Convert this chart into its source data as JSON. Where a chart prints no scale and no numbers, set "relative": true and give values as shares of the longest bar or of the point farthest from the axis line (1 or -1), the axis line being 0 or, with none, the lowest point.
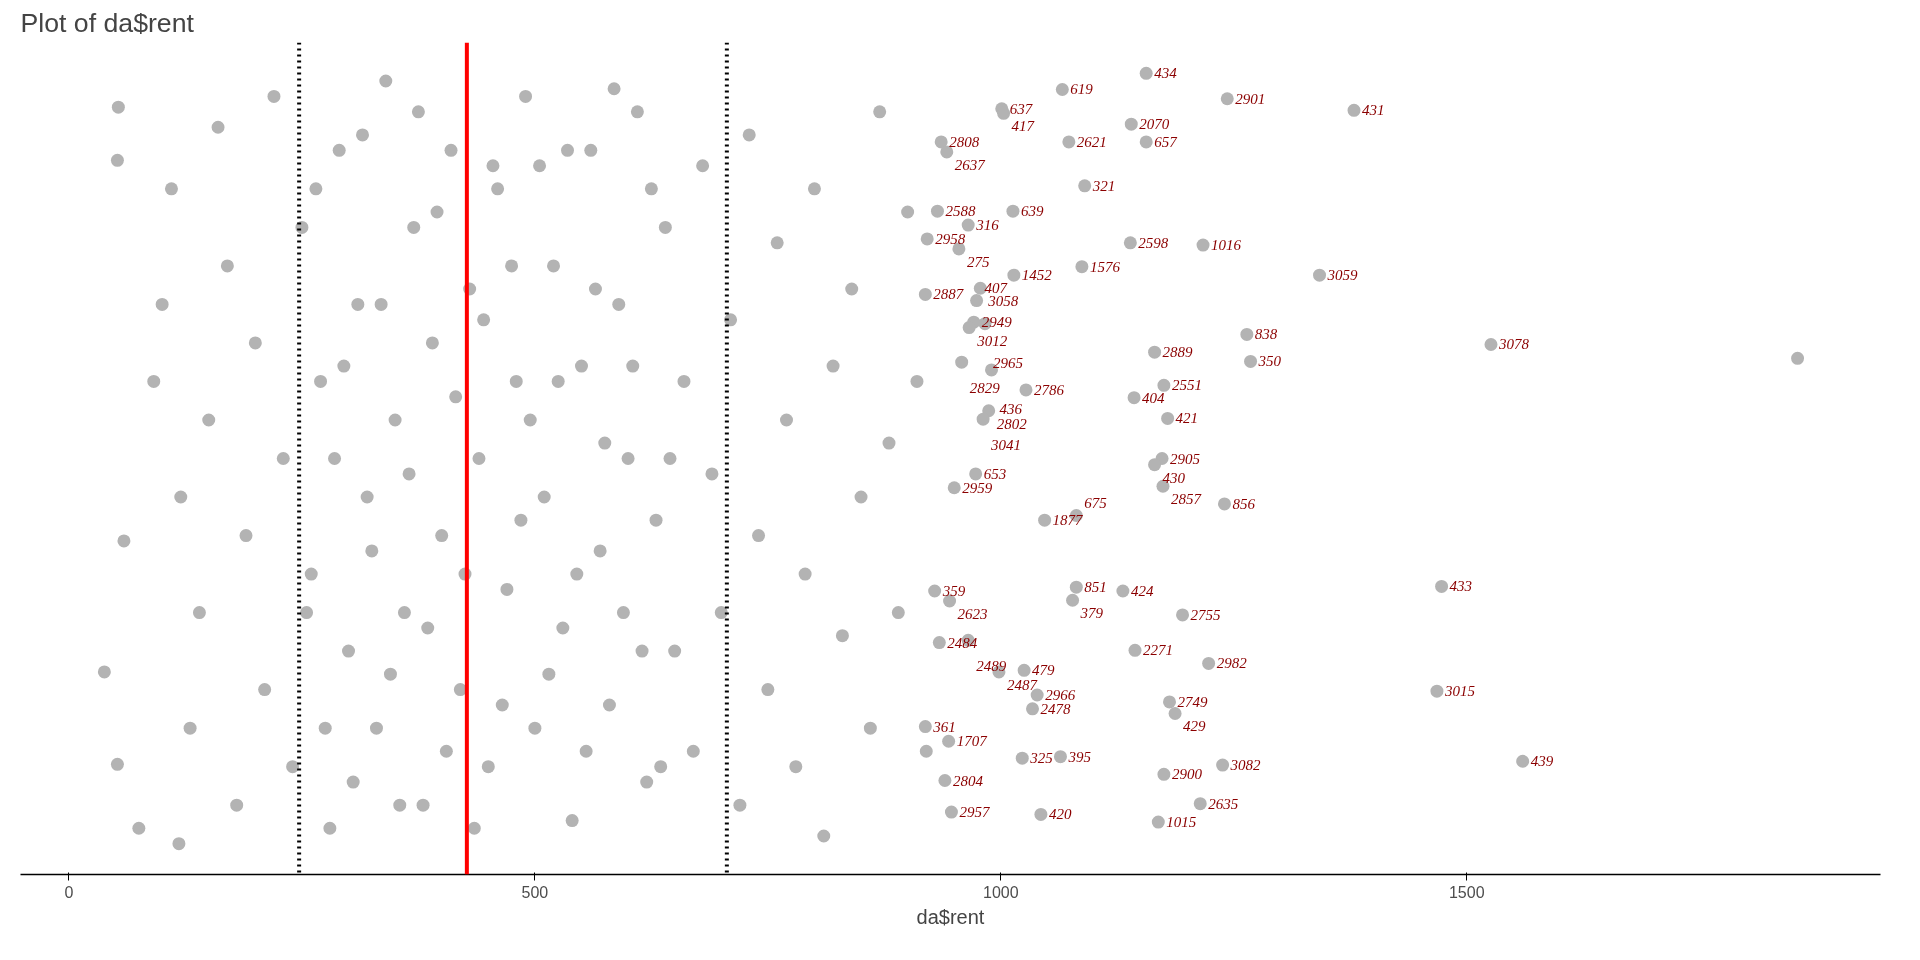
{
  "chart_data": {
    "type": "scatter",
    "title": "Plot of da$rent",
    "xlabel": "da$rent",
    "relative": true,
    "tick_labels": "x",
    "grid": false,
    "marker": "circle",
    "xlim": [
      -52,
      1944
    ],
    "xticks": [
      0,
      500,
      1000,
      1500
    ],
    "series": [
      {
        "color": "#b3b3b3",
        "x": [
          53,
          52,
          38,
          52,
          59,
          118,
          75,
          91,
          100,
          120,
          130,
          110,
          140,
          150,
          160,
          170,
          180,
          190,
          200,
          210,
          220,
          230,
          240,
          250,
          260,
          270,
          280,
          290,
          300,
          310,
          320,
          330,
          340,
          350,
          360,
          370,
          380,
          390,
          400,
          410,
          420,
          430,
          440,
          450,
          460,
          470,
          480,
          490,
          500,
          510,
          520,
          530,
          540,
          550,
          560,
          570,
          580,
          590,
          600,
          610,
          620,
          630,
          640,
          650,
          660,
          670,
          680,
          690,
          700,
          710,
          720,
          730,
          740,
          750,
          760,
          770,
          780,
          790,
          800,
          810,
          820,
          830,
          840,
          850,
          860,
          870,
          880,
          890,
          900,
          910,
          920,
          255,
          265,
          275,
          285,
          295,
          305,
          315,
          325,
          335,
          345,
          355,
          365,
          375,
          385,
          395,
          405,
          415,
          425,
          435,
          445,
          455,
          465,
          475,
          485,
          495,
          505,
          515,
          525,
          535,
          545,
          555,
          565,
          575,
          585,
          595,
          605,
          615,
          625,
          635,
          645,
          1156,
          1066,
          1243,
          1379,
          1001,
          1003,
          1140,
          1073,
          1156,
          936,
          942,
          1090,
          932,
          1013,
          965,
          921,
          955,
          1139,
          1217,
          1087,
          1014,
          1342,
          919,
          978,
          974,
          971,
          966,
          983,
          1264,
          1526,
          1855,
          1165,
          1268,
          958,
          990,
          1027,
          1175,
          1143,
          1179,
          987,
          981,
          1173,
          1165,
          973,
          950,
          1174,
          1240,
          1047,
          1081,
          929,
          945,
          1081,
          1077,
          1131,
          1473,
          1195,
          934,
          965,
          1144,
          1223,
          998,
          1025,
          1468,
          1039,
          1034,
          1181,
          1187,
          919,
          944,
          1023,
          1064,
          1560,
          1238,
          1175,
          940,
          1214,
          947,
          1043,
          1169
        ],
        "values": [
          0.956,
          0.887,
          0.223,
          0.103,
          0.393,
          0.0,
          0.02,
          0.6,
          0.7,
          0.45,
          0.15,
          0.85,
          0.3,
          0.55,
          0.93,
          0.75,
          0.05,
          0.4,
          0.65,
          0.2,
          0.97,
          0.5,
          0.1,
          0.8,
          0.35,
          0.6,
          0.02,
          0.9,
          0.25,
          0.7,
          0.45,
          0.15,
          0.99,
          0.55,
          0.3,
          0.8,
          0.05,
          0.65,
          0.4,
          0.9,
          0.2,
          0.72,
          0.5,
          0.1,
          0.85,
          0.33,
          0.6,
          0.97,
          0.15,
          0.45,
          0.75,
          0.28,
          0.03,
          0.62,
          0.9,
          0.38,
          0.18,
          0.7,
          0.5,
          0.95,
          0.08,
          0.42,
          0.8,
          0.25,
          0.6,
          0.12,
          0.88,
          0.48,
          0.3,
          0.68,
          0.05,
          0.92,
          0.4,
          0.2,
          0.78,
          0.55,
          0.1,
          0.35,
          0.85,
          0.01,
          0.62,
          0.27,
          0.72,
          0.45,
          0.15,
          0.95,
          0.52,
          0.3,
          0.82,
          0.6,
          0.12,
          0.3,
          0.85,
          0.15,
          0.5,
          0.62,
          0.08,
          0.92,
          0.38,
          0.7,
          0.22,
          0.05,
          0.48,
          0.95,
          0.28,
          0.82,
          0.12,
          0.58,
          0.35,
          0.02,
          0.68,
          0.88,
          0.18,
          0.75,
          0.42,
          0.55,
          0.88,
          0.22,
          0.6,
          0.9,
          0.35,
          0.12,
          0.72,
          0.52,
          0.98,
          0.3,
          0.62,
          0.25,
          0.85,
          0.1,
          0.5,
          1.0,
          0.979,
          0.967,
          0.952,
          0.954,
          0.948,
          0.934,
          0.911,
          0.911,
          0.911,
          0.898,
          0.854,
          0.821,
          0.821,
          0.803,
          0.785,
          0.772,
          0.78,
          0.777,
          0.749,
          0.738,
          0.738,
          0.713,
          0.721,
          0.705,
          0.677,
          0.67,
          0.675,
          0.661,
          0.648,
          0.63,
          0.638,
          0.626,
          0.625,
          0.615,
          0.589,
          0.595,
          0.579,
          0.552,
          0.562,
          0.551,
          0.5,
          0.492,
          0.48,
          0.462,
          0.464,
          0.441,
          0.42,
          0.426,
          0.328,
          0.315,
          0.333,
          0.316,
          0.328,
          0.334,
          0.297,
          0.261,
          0.264,
          0.251,
          0.234,
          0.223,
          0.225,
          0.198,
          0.193,
          0.175,
          0.184,
          0.169,
          0.152,
          0.133,
          0.111,
          0.113,
          0.107,
          0.102,
          0.09,
          0.082,
          0.052,
          0.041,
          0.038,
          0.028
        ]
      }
    ],
    "ref_lines": [
      {
        "axis": "x",
        "value": 247,
        "color": "#000000",
        "line_style": "dotted"
      },
      {
        "axis": "x",
        "value": 427,
        "color": "#ff0000",
        "line_style": "solid"
      },
      {
        "axis": "x",
        "value": 706,
        "color": "#000000",
        "line_style": "dotted"
      }
    ],
    "annotations": [
      {
        "text": "434",
        "x": 1156,
        "y": 1.0
      },
      {
        "text": "619",
        "x": 1066,
        "y": 0.979
      },
      {
        "text": "2901",
        "x": 1243,
        "y": 0.967
      },
      {
        "text": "431",
        "x": 1379,
        "y": 0.952
      },
      {
        "text": "637",
        "x": 1001,
        "y": 0.954
      },
      {
        "text": "417",
        "x": 1003,
        "y": 0.948
      },
      {
        "text": "2070",
        "x": 1140,
        "y": 0.934
      },
      {
        "text": "2621",
        "x": 1073,
        "y": 0.911
      },
      {
        "text": "657",
        "x": 1156,
        "y": 0.911
      },
      {
        "text": "2808",
        "x": 936,
        "y": 0.911
      },
      {
        "text": "2637",
        "x": 942,
        "y": 0.898
      },
      {
        "text": "321",
        "x": 1090,
        "y": 0.854
      },
      {
        "text": "2588",
        "x": 932,
        "y": 0.821
      },
      {
        "text": "639",
        "x": 1013,
        "y": 0.821
      },
      {
        "text": "316",
        "x": 965,
        "y": 0.803
      },
      {
        "text": "2958",
        "x": 921,
        "y": 0.785
      },
      {
        "text": "275",
        "x": 955,
        "y": 0.772
      },
      {
        "text": "2598",
        "x": 1139,
        "y": 0.78
      },
      {
        "text": "1016",
        "x": 1217,
        "y": 0.777
      },
      {
        "text": "1576",
        "x": 1087,
        "y": 0.749
      },
      {
        "text": "1452",
        "x": 1014,
        "y": 0.738
      },
      {
        "text": "3059",
        "x": 1342,
        "y": 0.738
      },
      {
        "text": "2887",
        "x": 919,
        "y": 0.713
      },
      {
        "text": "3058",
        "x": 978,
        "y": 0.721
      },
      {
        "text": "407",
        "x": 974,
        "y": 0.705
      },
      {
        "text": "2949",
        "x": 971,
        "y": 0.677
      },
      {
        "text": "3012",
        "x": 966,
        "y": 0.67
      },
      {
        "text": "2965",
        "x": 983,
        "y": 0.675
      },
      {
        "text": "838",
        "x": 1264,
        "y": 0.661
      },
      {
        "text": "3078",
        "x": 1526,
        "y": 0.648
      },
      {
        "text": "2889",
        "x": 1165,
        "y": 0.638
      },
      {
        "text": "350",
        "x": 1268,
        "y": 0.626
      },
      {
        "text": "2829",
        "x": 958,
        "y": 0.625
      },
      {
        "text": "436",
        "x": 990,
        "y": 0.615
      },
      {
        "text": "2786",
        "x": 1027,
        "y": 0.589
      },
      {
        "text": "2551",
        "x": 1175,
        "y": 0.595
      },
      {
        "text": "404",
        "x": 1143,
        "y": 0.579
      },
      {
        "text": "421",
        "x": 1179,
        "y": 0.552
      },
      {
        "text": "2802",
        "x": 987,
        "y": 0.562
      },
      {
        "text": "3041",
        "x": 981,
        "y": 0.551
      },
      {
        "text": "2905",
        "x": 1173,
        "y": 0.5
      },
      {
        "text": "430",
        "x": 1165,
        "y": 0.492
      },
      {
        "text": "653",
        "x": 973,
        "y": 0.48
      },
      {
        "text": "2959",
        "x": 950,
        "y": 0.462
      },
      {
        "text": "2857",
        "x": 1174,
        "y": 0.464
      },
      {
        "text": "856",
        "x": 1240,
        "y": 0.441
      },
      {
        "text": "1877",
        "x": 1047,
        "y": 0.42
      },
      {
        "text": "675",
        "x": 1081,
        "y": 0.426
      },
      {
        "text": "359",
        "x": 929,
        "y": 0.328
      },
      {
        "text": "2623",
        "x": 945,
        "y": 0.315
      },
      {
        "text": "851",
        "x": 1081,
        "y": 0.333
      },
      {
        "text": "379",
        "x": 1077,
        "y": 0.316
      },
      {
        "text": "424",
        "x": 1131,
        "y": 0.328
      },
      {
        "text": "433",
        "x": 1473,
        "y": 0.334
      },
      {
        "text": "2755",
        "x": 1195,
        "y": 0.297
      },
      {
        "text": "2484",
        "x": 934,
        "y": 0.261
      },
      {
        "text": "2489",
        "x": 965,
        "y": 0.264
      },
      {
        "text": "2271",
        "x": 1144,
        "y": 0.251
      },
      {
        "text": "2982",
        "x": 1223,
        "y": 0.234
      },
      {
        "text": "2487",
        "x": 998,
        "y": 0.223
      },
      {
        "text": "479",
        "x": 1025,
        "y": 0.225
      },
      {
        "text": "3015",
        "x": 1468,
        "y": 0.198
      },
      {
        "text": "2966",
        "x": 1039,
        "y": 0.193
      },
      {
        "text": "2478",
        "x": 1034,
        "y": 0.175
      },
      {
        "text": "2749",
        "x": 1181,
        "y": 0.184
      },
      {
        "text": "429",
        "x": 1187,
        "y": 0.169
      },
      {
        "text": "361",
        "x": 919,
        "y": 0.152
      },
      {
        "text": "1707",
        "x": 944,
        "y": 0.133
      },
      {
        "text": "325",
        "x": 1023,
        "y": 0.111
      },
      {
        "text": "395",
        "x": 1064,
        "y": 0.113
      },
      {
        "text": "439",
        "x": 1560,
        "y": 0.107
      },
      {
        "text": "3082",
        "x": 1238,
        "y": 0.102
      },
      {
        "text": "2900",
        "x": 1175,
        "y": 0.09
      },
      {
        "text": "2804",
        "x": 940,
        "y": 0.082
      },
      {
        "text": "2635",
        "x": 1214,
        "y": 0.052
      },
      {
        "text": "2957",
        "x": 947,
        "y": 0.041
      },
      {
        "text": "420",
        "x": 1043,
        "y": 0.038
      },
      {
        "text": "1015",
        "x": 1169,
        "y": 0.028
      }
    ]
  }
}
